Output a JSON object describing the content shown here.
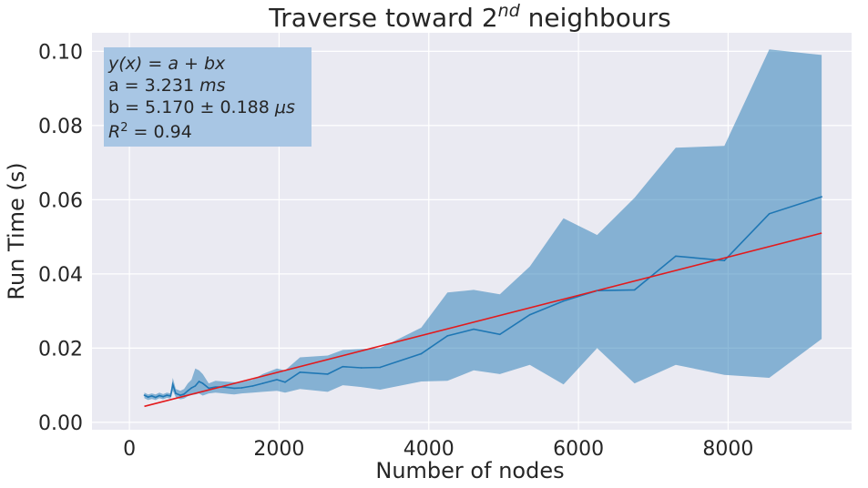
{
  "chart_data": {
    "type": "line",
    "title": {
      "text": "Traverse toward 2",
      "sup": "nd",
      "suffix": " neighbours"
    },
    "xlabel": "Number of nodes",
    "ylabel": "Run Time (s)",
    "xlim": [
      -500,
      9650
    ],
    "ylim": [
      -0.002,
      0.105
    ],
    "xticks": [
      0,
      2000,
      4000,
      6000,
      8000
    ],
    "xtick_labels": [
      "0",
      "2000",
      "4000",
      "6000",
      "8000"
    ],
    "yticks": [
      0.0,
      0.02,
      0.04,
      0.06,
      0.08,
      0.1
    ],
    "ytick_labels": [
      "0.00",
      "0.02",
      "0.04",
      "0.06",
      "0.08",
      "0.10"
    ],
    "grid": true,
    "colors": {
      "background": "#eaeaf2",
      "grid": "#ffffff",
      "series": "#1f77b4",
      "band": "#1f77b4",
      "fit": "#e31a1c",
      "annotation_box": "#a8c6e4"
    },
    "series": [
      {
        "x": [
          200,
          250,
          300,
          350,
          400,
          450,
          500,
          550,
          580,
          620,
          680,
          730,
          780,
          830,
          880,
          930,
          980,
          1060,
          1150,
          1260,
          1400,
          1500,
          1650,
          1780,
          1970,
          2080,
          2280,
          2650,
          2850,
          3100,
          3350,
          3900,
          4250,
          4600,
          4950,
          5350,
          5800,
          6250,
          6750,
          7300,
          7950,
          8550,
          9250
        ],
        "values": [
          0.0073,
          0.0068,
          0.0071,
          0.0067,
          0.0072,
          0.0069,
          0.0073,
          0.0071,
          0.0102,
          0.0078,
          0.0073,
          0.0076,
          0.0085,
          0.0093,
          0.0098,
          0.011,
          0.0105,
          0.0092,
          0.0095,
          0.0095,
          0.0092,
          0.0093,
          0.0098,
          0.0105,
          0.0115,
          0.0108,
          0.0135,
          0.013,
          0.015,
          0.0147,
          0.0148,
          0.0185,
          0.0233,
          0.0251,
          0.0237,
          0.029,
          0.0327,
          0.0355,
          0.0357,
          0.0448,
          0.0436,
          0.0562,
          0.0608
        ],
        "lower": [
          0.0065,
          0.006,
          0.0063,
          0.006,
          0.0065,
          0.0062,
          0.0066,
          0.0064,
          0.0085,
          0.0068,
          0.0062,
          0.0064,
          0.007,
          0.0074,
          0.0075,
          0.0078,
          0.0072,
          0.0078,
          0.008,
          0.0078,
          0.0075,
          0.0078,
          0.008,
          0.0082,
          0.0085,
          0.008,
          0.009,
          0.0082,
          0.01,
          0.0095,
          0.0088,
          0.011,
          0.0112,
          0.014,
          0.013,
          0.0155,
          0.0102,
          0.02,
          0.0105,
          0.0155,
          0.0128,
          0.012,
          0.0225
        ],
        "upper": [
          0.008,
          0.0075,
          0.0078,
          0.0075,
          0.008,
          0.0076,
          0.008,
          0.0078,
          0.012,
          0.009,
          0.0085,
          0.009,
          0.0105,
          0.0115,
          0.0145,
          0.014,
          0.013,
          0.0105,
          0.0112,
          0.011,
          0.0108,
          0.0108,
          0.0115,
          0.013,
          0.0145,
          0.014,
          0.0175,
          0.018,
          0.0195,
          0.0198,
          0.02,
          0.0255,
          0.035,
          0.0357,
          0.0345,
          0.042,
          0.055,
          0.0505,
          0.0605,
          0.074,
          0.0745,
          0.1005,
          0.099
        ]
      }
    ],
    "fit": {
      "x": [
        200,
        9250
      ],
      "values": [
        0.0043,
        0.051
      ]
    },
    "annotation": {
      "lines": [
        {
          "text": "y(x) = a + bx",
          "italic": true
        },
        {
          "text": "a = 3.231 ",
          "unit": "ms"
        },
        {
          "text": "b = 5.170 ± 0.188 ",
          "unit": "μs"
        },
        {
          "text": "R",
          "sup": "2",
          "suffix": " = 0.94",
          "italic_prefix": true
        }
      ]
    }
  }
}
